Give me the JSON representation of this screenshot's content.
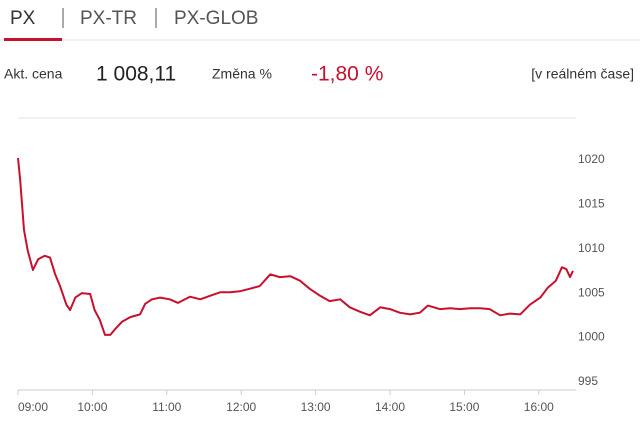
{
  "tabs": [
    "PX",
    "PX-TR",
    "PX-GLOB"
  ],
  "quote": {
    "price_label": "Akt. cena",
    "price": "1 008,11",
    "change_label": "Změna %",
    "change": "-1,80 %",
    "realtime": "[v reálném čase]"
  },
  "chart_data": {
    "type": "line",
    "x": [
      9.0,
      9.03,
      9.08,
      9.13,
      9.2,
      9.27,
      9.36,
      9.43,
      9.5,
      9.56,
      9.65,
      9.7,
      9.77,
      9.86,
      9.97,
      10.03,
      10.1,
      10.17,
      10.24,
      10.3,
      10.4,
      10.51,
      10.64,
      10.71,
      10.8,
      10.91,
      11.04,
      11.15,
      11.31,
      11.45,
      11.58,
      11.72,
      11.85,
      11.98,
      12.12,
      12.25,
      12.39,
      12.52,
      12.66,
      12.79,
      12.92,
      13.06,
      13.19,
      13.33,
      13.46,
      13.6,
      13.73,
      13.87,
      14.0,
      14.13,
      14.27,
      14.4,
      14.51,
      14.67,
      14.81,
      14.94,
      15.08,
      15.21,
      15.34,
      15.48,
      15.61,
      15.75,
      15.88,
      16.02,
      16.12,
      16.23,
      16.31,
      16.37,
      16.42,
      16.46
    ],
    "series": [
      {
        "name": "PX",
        "color": "#c8102e",
        "values": [
          1020.2,
          1017.7,
          1012.1,
          1009.8,
          1007.6,
          1008.8,
          1009.2,
          1009.0,
          1007.1,
          1005.9,
          1003.7,
          1003.1,
          1004.5,
          1005.0,
          1004.9,
          1003.1,
          1002.0,
          1000.3,
          1000.3,
          1000.9,
          1001.8,
          1002.3,
          1002.6,
          1003.8,
          1004.3,
          1004.5,
          1004.3,
          1003.9,
          1004.6,
          1004.3,
          1004.7,
          1005.1,
          1005.1,
          1005.2,
          1005.5,
          1005.8,
          1007.1,
          1006.8,
          1006.9,
          1006.4,
          1005.5,
          1004.7,
          1004.1,
          1004.3,
          1003.4,
          1002.9,
          1002.5,
          1003.4,
          1003.2,
          1002.8,
          1002.6,
          1002.8,
          1003.6,
          1003.2,
          1003.3,
          1003.2,
          1003.3,
          1003.3,
          1003.2,
          1002.5,
          1002.7,
          1002.6,
          1003.7,
          1004.5,
          1005.6,
          1006.4,
          1007.9,
          1007.7,
          1006.8,
          1007.5
        ]
      }
    ],
    "xlim": [
      9,
      16.5
    ],
    "xticks": [
      {
        "value": 9,
        "label": "09:00"
      },
      {
        "value": 10,
        "label": "10:00"
      },
      {
        "value": 11,
        "label": "11:00"
      },
      {
        "value": 12,
        "label": "12:00"
      },
      {
        "value": 13,
        "label": "13:00"
      },
      {
        "value": 14,
        "label": "14:00"
      },
      {
        "value": 15,
        "label": "15:00"
      },
      {
        "value": 16,
        "label": "16:00"
      }
    ],
    "ylim": [
      994.1,
      1024.7
    ],
    "yticks": [
      995,
      1000,
      1005,
      1010,
      1015,
      1020
    ],
    "grid": false
  }
}
